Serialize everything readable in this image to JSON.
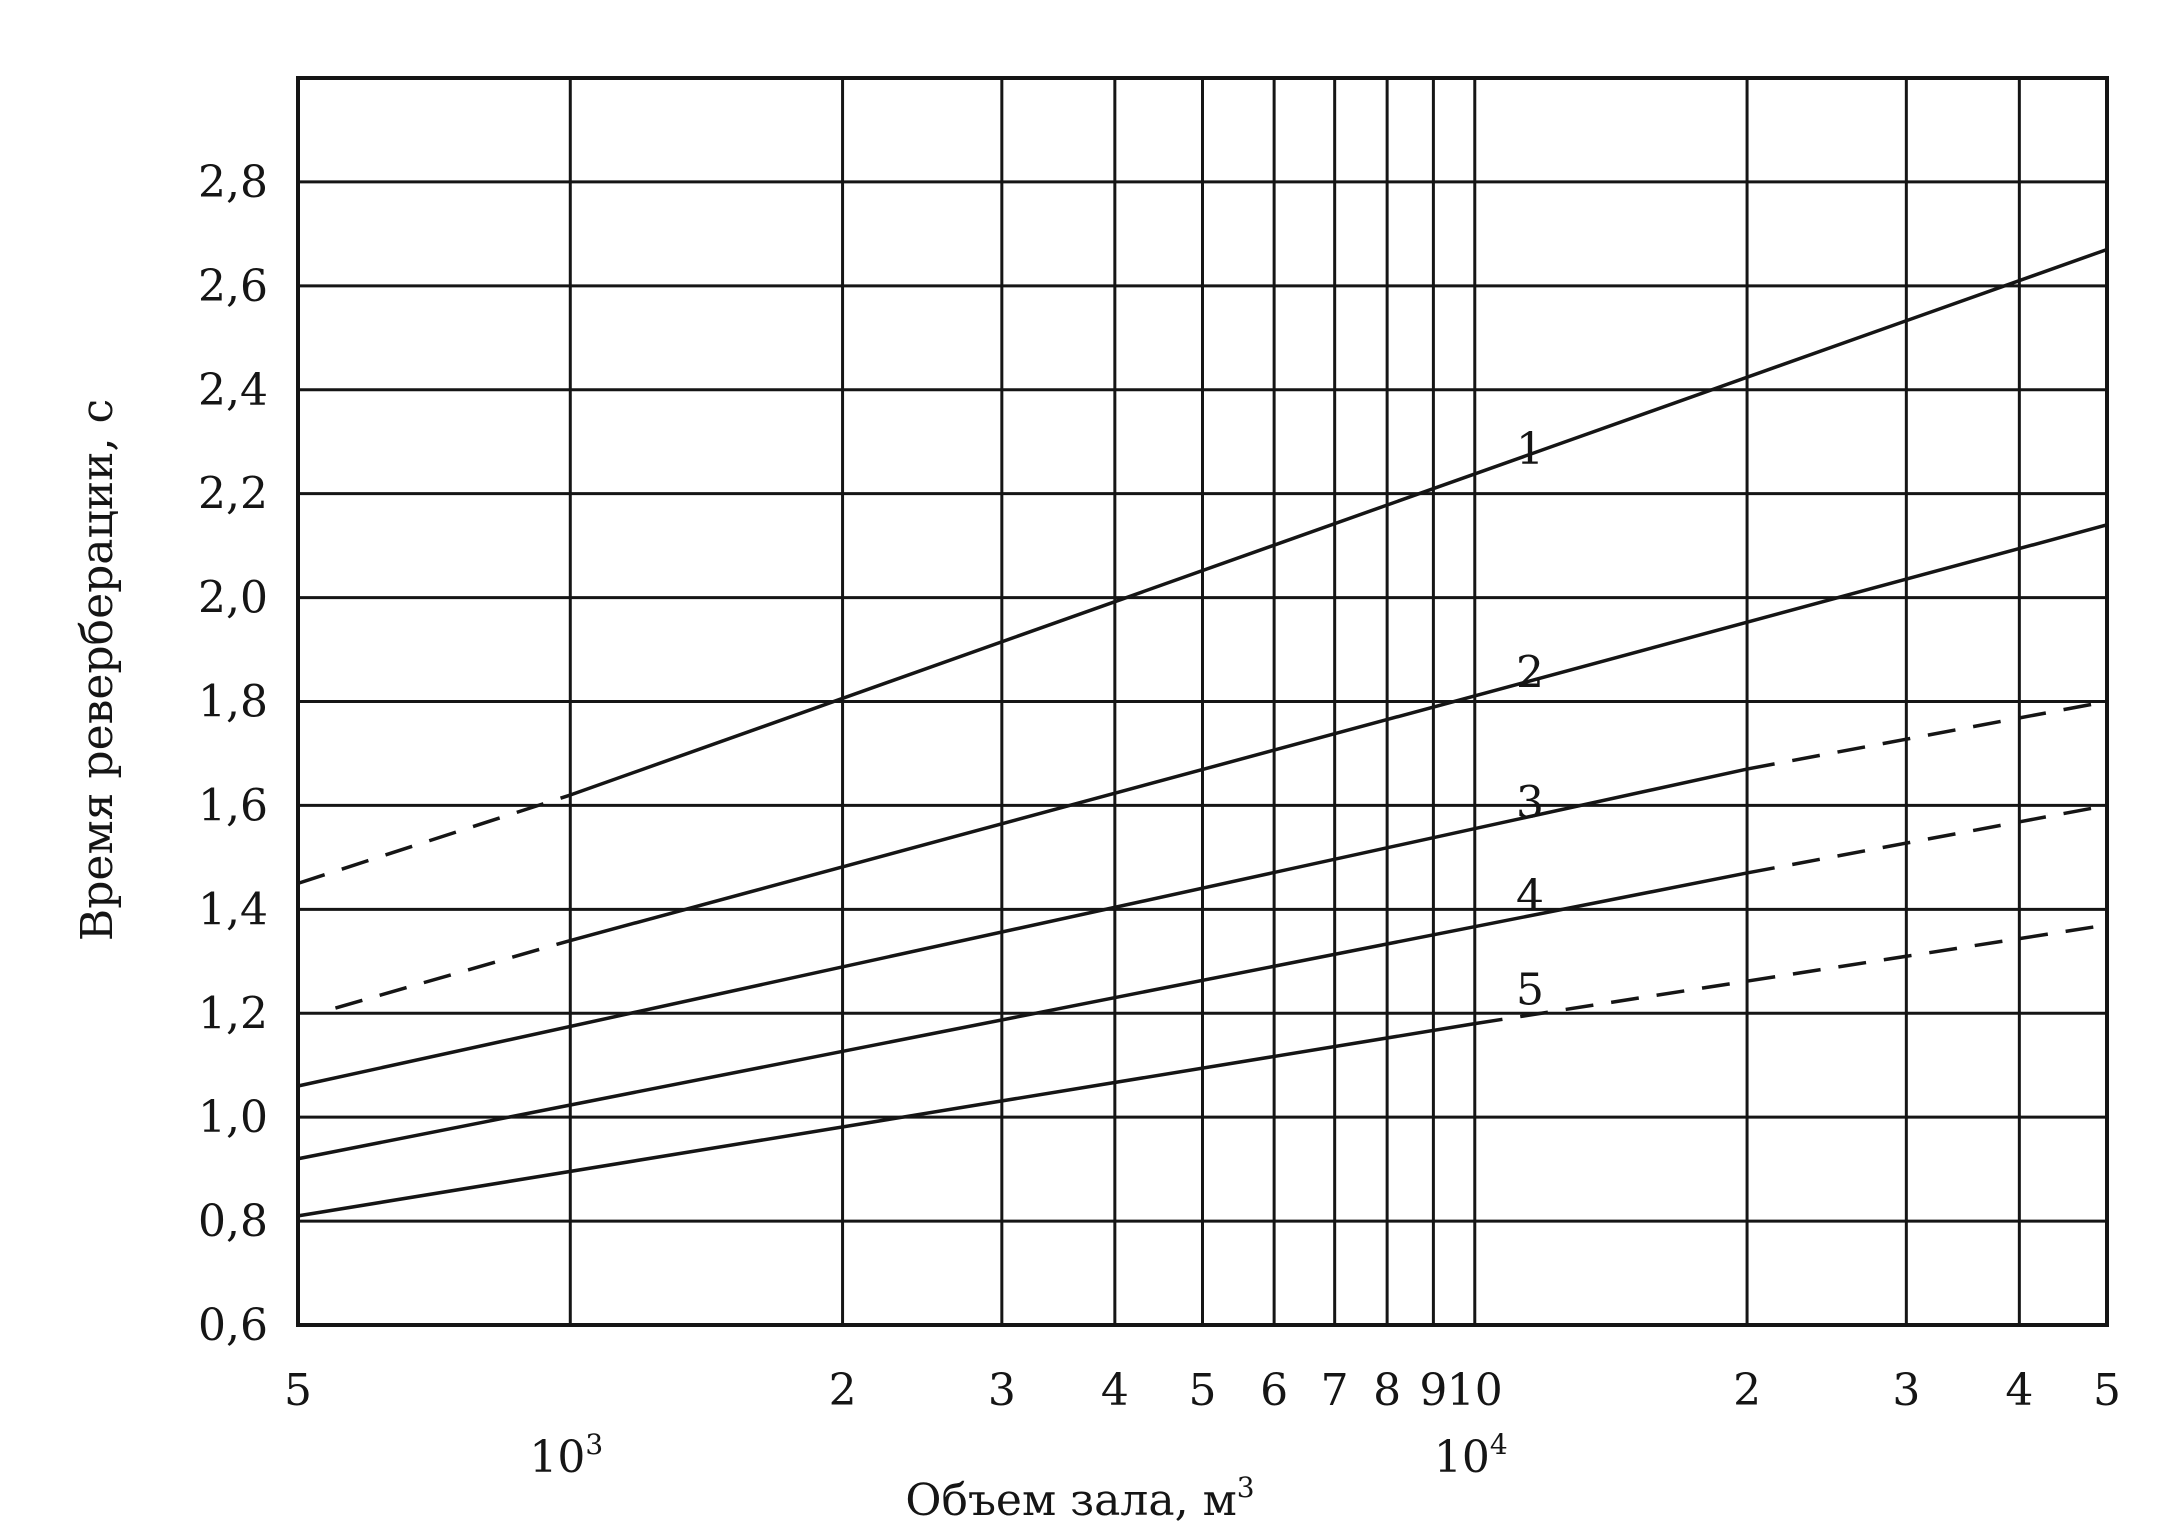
{
  "chart_data": {
    "type": "line",
    "x_scale": "log",
    "xlabel": "Объем зала, м",
    "xlabel_sup": "3",
    "ylabel": "Время реверберации, с",
    "xlim": [
      500,
      50000
    ],
    "ylim": [
      0.6,
      3.0
    ],
    "grid": true,
    "x_ticks": [
      {
        "value": 500,
        "label": "5"
      },
      {
        "value": 2000,
        "label": "2"
      },
      {
        "value": 3000,
        "label": "3"
      },
      {
        "value": 4000,
        "label": "4"
      },
      {
        "value": 5000,
        "label": "5"
      },
      {
        "value": 6000,
        "label": "6"
      },
      {
        "value": 7000,
        "label": "7"
      },
      {
        "value": 8000,
        "label": "8"
      },
      {
        "value": 9000,
        "label": "9"
      },
      {
        "value": 10000,
        "label": "10"
      },
      {
        "value": 20000,
        "label": "2"
      },
      {
        "value": 30000,
        "label": "3"
      },
      {
        "value": 40000,
        "label": "4"
      },
      {
        "value": 50000,
        "label": "5"
      }
    ],
    "x_decade_labels": [
      {
        "value": 1000,
        "base": "10",
        "exp": "3"
      },
      {
        "value": 10000,
        "base": "10",
        "exp": "4"
      }
    ],
    "y_ticks": [
      0.6,
      0.8,
      1.0,
      1.2,
      1.4,
      1.6,
      1.8,
      2.0,
      2.2,
      2.4,
      2.6,
      2.8
    ],
    "y_tick_labels": [
      "0,6",
      "0,8",
      "1,0",
      "1,2",
      "1,4",
      "1,6",
      "1,8",
      "2,0",
      "2,2",
      "2,4",
      "2,6",
      "2,8"
    ],
    "series": [
      {
        "label": "1",
        "solid": [
          [
            1000,
            1.62
          ],
          [
            50000,
            2.67
          ]
        ],
        "dashed": [
          [
            500,
            1.45
          ],
          [
            1000,
            1.62
          ]
        ]
      },
      {
        "label": "2",
        "solid": [
          [
            1000,
            1.34
          ],
          [
            50000,
            2.14
          ]
        ],
        "dashed": [
          [
            550,
            1.21
          ],
          [
            1000,
            1.34
          ]
        ]
      },
      {
        "label": "3",
        "solid": [
          [
            500,
            1.06
          ],
          [
            20000,
            1.67
          ]
        ],
        "dashed": [
          [
            20000,
            1.67
          ],
          [
            50000,
            1.8
          ]
        ]
      },
      {
        "label": "4",
        "solid": [
          [
            500,
            0.92
          ],
          [
            20000,
            1.47
          ]
        ],
        "dashed": [
          [
            20000,
            1.47
          ],
          [
            50000,
            1.6
          ]
        ]
      },
      {
        "label": "5",
        "solid": [
          [
            500,
            0.81
          ],
          [
            10000,
            1.18
          ]
        ],
        "dashed": [
          [
            10000,
            1.18
          ],
          [
            50000,
            1.37
          ]
        ]
      }
    ],
    "curve_label_positions_data": [
      {
        "label": "1",
        "x": 10500,
        "y": 2.28
      },
      {
        "label": "2",
        "x": 10500,
        "y": 1.85
      },
      {
        "label": "3",
        "x": 10500,
        "y": 1.6
      },
      {
        "label": "4",
        "x": 10500,
        "y": 1.42
      },
      {
        "label": "5",
        "x": 10500,
        "y": 1.24
      }
    ]
  }
}
